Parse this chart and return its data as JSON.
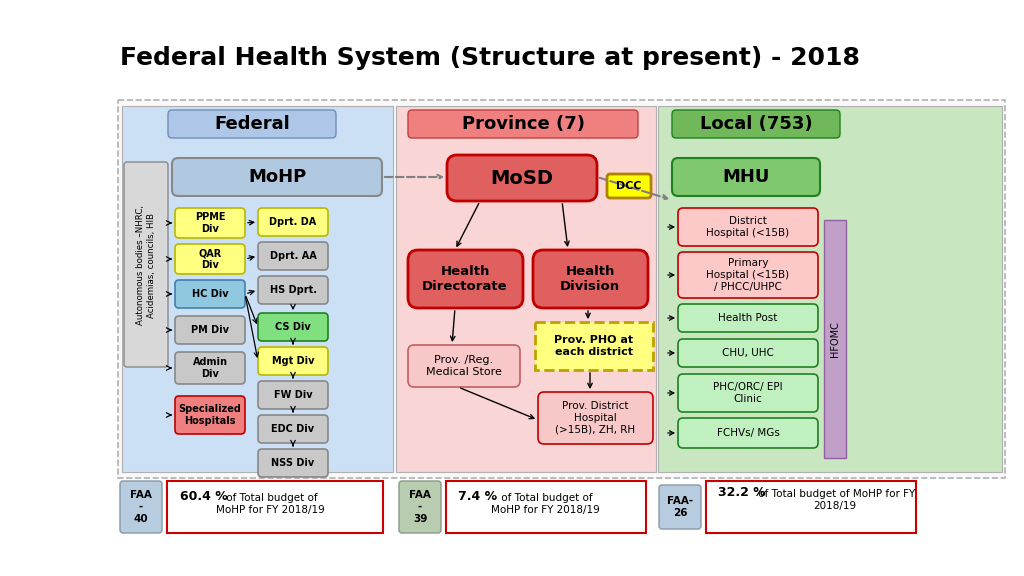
{
  "title": "Federal Health System (Structure at present) - 2018",
  "bg_color": "#ffffff",
  "federal_header": "Federal",
  "federal_header_bg": "#aec6e8",
  "federal_section_bg": "#cce0f5",
  "province_header": "Province (7)",
  "province_header_bg": "#f08080",
  "province_section_bg": "#fad5d5",
  "local_header": "Local (753)",
  "local_header_bg": "#70b85a",
  "local_section_bg": "#c8e6c0",
  "mohp_box": "MoHP",
  "mohp_bg": "#b0c8e0",
  "mosd_box": "MoSD",
  "mosd_bg": "#e06060",
  "mhu_box": "MHU",
  "mhu_bg": "#80c870",
  "autonomous_text": "Autonomous bodies –NHRC,\nAcidemias, councils, HIB",
  "autonomous_bg": "#d8d8d8",
  "federal_left_boxes": [
    {
      "label": "PPME\nDiv",
      "bg": "#ffff80",
      "border": "#b8b800"
    },
    {
      "label": "QAR\nDiv",
      "bg": "#ffff80",
      "border": "#b8b800"
    },
    {
      "label": "HC Div",
      "bg": "#90c8e0",
      "border": "#4080b0"
    },
    {
      "label": "PM Div",
      "bg": "#c8c8c8",
      "border": "#888888"
    },
    {
      "label": "Admin\nDiv",
      "bg": "#c8c8c8",
      "border": "#888888"
    },
    {
      "label": "Specialized\nHospitals",
      "bg": "#f08080",
      "border": "#c00000"
    }
  ],
  "dprt_boxes": [
    {
      "label": "Dprt. DA",
      "bg": "#ffff80",
      "border": "#b8b800"
    },
    {
      "label": "Dprt. AA",
      "bg": "#c8c8c8",
      "border": "#888888"
    },
    {
      "label": "HS Dprt.",
      "bg": "#c8c8c8",
      "border": "#888888"
    },
    {
      "label": "CS Div",
      "bg": "#80e080",
      "border": "#208020"
    },
    {
      "label": "Mgt Div",
      "bg": "#ffff80",
      "border": "#b8b800"
    },
    {
      "label": "FW Div",
      "bg": "#c8c8c8",
      "border": "#888888"
    },
    {
      "label": "EDC Div",
      "bg": "#c8c8c8",
      "border": "#888888"
    },
    {
      "label": "NSS Div",
      "bg": "#c8c8c8",
      "border": "#888888"
    }
  ],
  "dcc_label": "DCC",
  "dcc_bg": "#ffff00",
  "dcc_border": "#b08000",
  "health_dir_label": "Health\nDirectorate",
  "health_dir_bg": "#e06060",
  "health_div_label": "Health\nDivision",
  "health_div_bg": "#e06060",
  "prov_reg_label": "Prov. /Reg.\nMedical Store",
  "prov_reg_bg": "#f8c8c8",
  "prov_pho_label": "Prov. PHO at\neach district",
  "prov_pho_bg": "#ffff80",
  "prov_pho_border": "#c0a000",
  "prov_district_label": "Prov. District\nHospital\n(>15B), ZH, RH",
  "prov_district_bg": "#f8c8c8",
  "local_boxes": [
    {
      "label": "District\nHospital (<15B)",
      "bg": "#fcc8c8",
      "border": "#c00000"
    },
    {
      "label": "Primary\nHospital (<15B)\n/ PHCC/UHPC",
      "bg": "#fcc8c8",
      "border": "#c00000"
    },
    {
      "label": "Health Post",
      "bg": "#c0f0c0",
      "border": "#208020"
    },
    {
      "label": "CHU, UHC",
      "bg": "#c0f0c0",
      "border": "#208020"
    },
    {
      "label": "PHC/ORC/ EPI\nClinic",
      "bg": "#c0f0c0",
      "border": "#208020"
    },
    {
      "label": "FCHVs/ MGs",
      "bg": "#c0f0c0",
      "border": "#208020"
    }
  ],
  "hfomc_label": "HFOMC",
  "hfomc_bg": "#c0a0c8",
  "faa40_label": "FAA\n-\n40",
  "faa39_label": "FAA\n-\n39",
  "faa26_label": "FAA-\n26",
  "budget_federal_bold": "60.4 %",
  "budget_federal_rest": " of Total budget of\nMoHP for FY 2018/19",
  "budget_province_bold": "7.4 %",
  "budget_province_rest": " of Total budget of\nMoHP for FY 2018/19",
  "budget_local_bold": "32.2 %",
  "budget_local_rest": " of Total budget of MoHP for FY\n2018/19"
}
